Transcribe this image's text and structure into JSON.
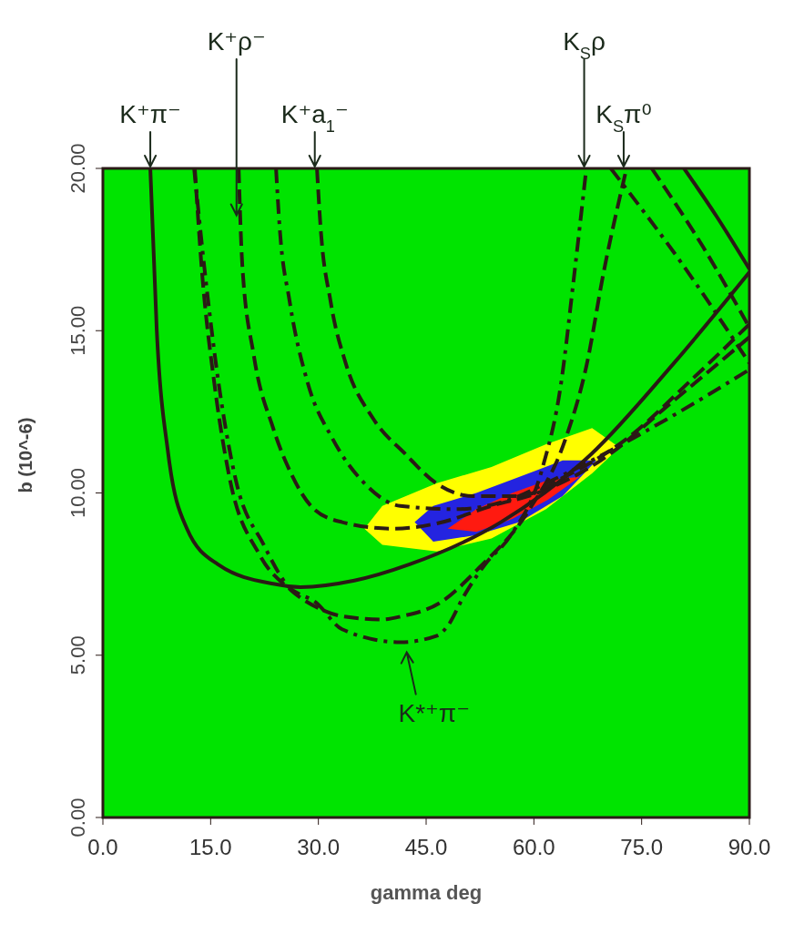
{
  "chart_data": {
    "type": "line",
    "xlabel": "gamma deg",
    "ylabel": "b  (10^-6)",
    "xlim": [
      0,
      90
    ],
    "ylim": [
      0,
      20
    ],
    "xticks": [
      {
        "value": 0,
        "label": "0.0"
      },
      {
        "value": 15,
        "label": "15.0"
      },
      {
        "value": 30,
        "label": "30.0"
      },
      {
        "value": 45,
        "label": "45.0"
      },
      {
        "value": 60,
        "label": "60.0"
      },
      {
        "value": 75,
        "label": "75.0"
      },
      {
        "value": 90,
        "label": "90.0"
      }
    ],
    "yticks": [
      {
        "value": 0,
        "label": "0.00"
      },
      {
        "value": 5,
        "label": "5.00"
      },
      {
        "value": 10,
        "label": "10.00"
      },
      {
        "value": 15,
        "label": "15.00"
      },
      {
        "value": 20,
        "label": "20.00"
      }
    ],
    "marker": "none",
    "bands": [
      {
        "axis": "y",
        "from": 0,
        "to": 20,
        "color": "#00e400"
      }
    ],
    "series": [
      {
        "type": "area",
        "color": "#ffff00",
        "x": [
          36.4,
          38.9,
          46.5,
          54.1,
          61.7,
          68.1,
          71.9
        ],
        "values": [
          null,
          null,
          null,
          null,
          null,
          null,
          null
        ],
        "upper": [
          8.9,
          9.6,
          10.3,
          10.8,
          11.5,
          12.0,
          11.4
        ],
        "lower": [
          8.9,
          8.4,
          8.2,
          8.6,
          9.5,
          10.6,
          11.4
        ]
      },
      {
        "type": "area",
        "color": "#2424e0",
        "x": [
          43.4,
          46,
          52,
          58,
          64,
          68.7
        ],
        "values": [
          null,
          null,
          null,
          null,
          null,
          null
        ],
        "upper": [
          9.1,
          9.6,
          10.0,
          10.5,
          11.0,
          11.0
        ],
        "lower": [
          9.1,
          8.5,
          8.7,
          9.1,
          9.9,
          11.0
        ]
      },
      {
        "type": "area",
        "color": "#ff1a10",
        "x": [
          48,
          52,
          57,
          62,
          66.4
        ],
        "values": [
          null,
          null,
          null,
          null,
          null
        ],
        "upper": [
          8.9,
          9.5,
          10.0,
          10.4,
          10.5
        ],
        "lower": [
          8.9,
          8.8,
          9.2,
          9.8,
          10.5
        ]
      },
      {
        "color": "#2b1a16",
        "line_style": "solid",
        "x": [
          6.6,
          7.5,
          9.1,
          11.7,
          16,
          23.7,
          27.5,
          35,
          42.7,
          55.4,
          68,
          79.5,
          90
        ],
        "values": [
          20,
          15,
          11.2,
          8.9,
          7.8,
          7.2,
          7.1,
          7.3,
          7.8,
          9.1,
          11.2,
          14,
          16.8
        ]
      },
      {
        "color": "#2b1a16",
        "line_style": "dashdot",
        "x": [
          12.7,
          14.2,
          16.1,
          18.5,
          22.4,
          25.5,
          29.8,
          33.3,
          41.4,
          46.5,
          48,
          50.2,
          53.2,
          56.8,
          61.1,
          63.8,
          65.5,
          67.3
        ],
        "values": [
          20,
          16.8,
          13.4,
          10.4,
          8.4,
          7.2,
          6.6,
          5.8,
          5.4,
          5.6,
          5.9,
          6.8,
          7.8,
          8.7,
          10.7,
          13.4,
          16.5,
          20
        ]
      },
      {
        "color": "#2b1a16",
        "line_style": "dashed",
        "x": [
          12.8,
          13.8,
          15.5,
          17.6,
          21.8,
          26.2,
          30,
          33.3,
          38.9,
          41.6,
          46.8,
          52.4,
          59.4,
          64.3,
          67.3,
          69.8,
          72.9
        ],
        "values": [
          20,
          16.8,
          13.4,
          10.5,
          8.1,
          7.0,
          6.45,
          6.2,
          6.1,
          6.2,
          6.6,
          7.7,
          9.5,
          11.6,
          13.9,
          16.9,
          20
        ]
      },
      {
        "color": "#2b1a16",
        "line_style": "dashed",
        "x": [
          18.9,
          19.4,
          21,
          23.7,
          26.2,
          29.4,
          33.3,
          40.3,
          46.5,
          54.1,
          60.5,
          69.3,
          79.5,
          90
        ],
        "values": [
          20,
          17.05,
          14.25,
          12.0,
          10.6,
          9.5,
          9.1,
          8.9,
          9.06,
          9.6,
          10.0,
          11.0,
          12.85,
          14.8
        ]
      },
      {
        "color": "#2b1a16",
        "line_style": "dashdot",
        "x": [
          24.1,
          24.6,
          26,
          28.5,
          31.9,
          36.4,
          41.4,
          49.1,
          56.7,
          61.7,
          70.6,
          79.5,
          90
        ],
        "values": [
          20,
          18.2,
          15.9,
          13.4,
          11.7,
          10.3,
          9.6,
          9.5,
          9.8,
          10.3,
          11.3,
          12.4,
          13.8
        ]
      },
      {
        "color": "#2b1a16",
        "line_style": "dashed",
        "x": [
          29.8,
          30.3,
          31.7,
          33.8,
          37.6,
          42.1,
          46.4,
          51.6,
          57.9,
          64.3,
          73.1,
          82,
          90
        ],
        "values": [
          20,
          18.2,
          15.9,
          14.0,
          12.3,
          11.2,
          10.3,
          9.9,
          9.9,
          10.5,
          11.7,
          13.5,
          15.2
        ]
      },
      {
        "color": "#2b1a16",
        "line_style": "solid",
        "x": [
          80.9,
          85.5,
          90
        ],
        "values": [
          20,
          18.5,
          16.9
        ]
      },
      {
        "color": "#2b1a16",
        "line_style": "dashed",
        "x": [
          76.4,
          83.5,
          90
        ],
        "values": [
          20,
          17.6,
          15.1
        ]
      },
      {
        "color": "#2b1a16",
        "line_style": "dashdot",
        "x": [
          70.7,
          80.5,
          90
        ],
        "values": [
          20,
          17.1,
          14.0
        ]
      }
    ],
    "annotations": [
      {
        "text": "K⁺π⁻",
        "x": 6.6,
        "y": 20
      },
      {
        "text": "K⁺ρ⁻",
        "x": 18.6,
        "y": 18.5
      },
      {
        "text": "K⁺a$_{1}$⁻",
        "x": 29.5,
        "y": 20
      },
      {
        "text": "K$_{S}$ρ",
        "x": 67,
        "y": 20
      },
      {
        "text": "K$_{S}$π⁰",
        "x": 72.5,
        "y": 20
      },
      "K*⁺π⁻"
    ]
  }
}
